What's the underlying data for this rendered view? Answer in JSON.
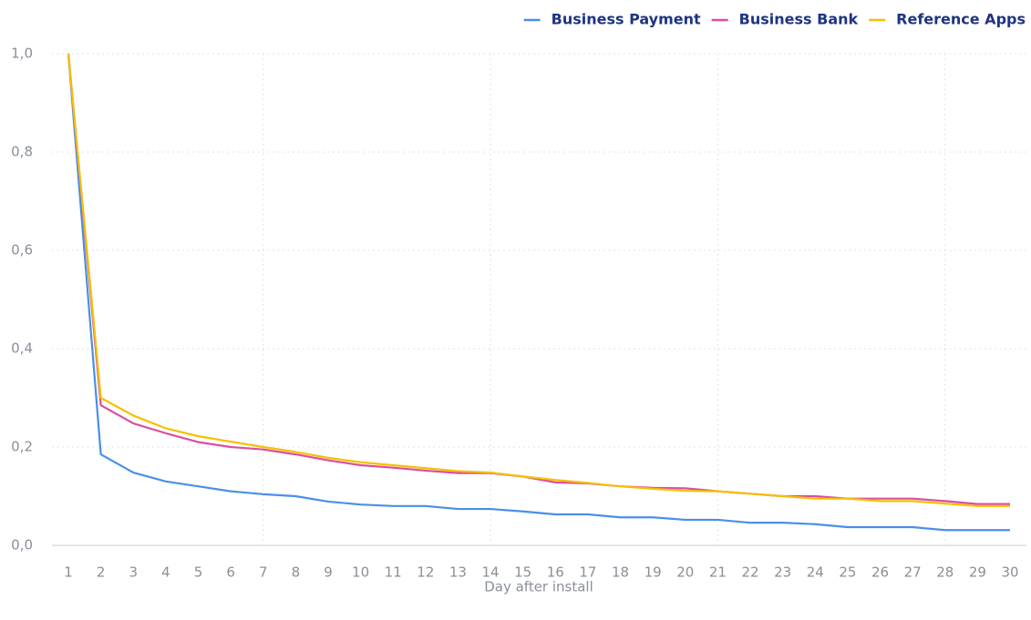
{
  "chart_data": {
    "type": "line",
    "x_label": "Day after install",
    "x": [
      1,
      2,
      3,
      4,
      5,
      6,
      7,
      8,
      9,
      10,
      11,
      12,
      13,
      14,
      15,
      16,
      17,
      18,
      19,
      20,
      21,
      22,
      23,
      24,
      25,
      26,
      27,
      28,
      29,
      30
    ],
    "xlim": [
      0.5,
      30.5
    ],
    "x_grid_lines": [
      7,
      14,
      21,
      28
    ],
    "ylim": [
      0,
      1
    ],
    "yticks": [
      {
        "value": 0,
        "label": "0,0"
      },
      {
        "value": 0.2,
        "label": "0,2"
      },
      {
        "value": 0.4,
        "label": "0,4"
      },
      {
        "value": 0.6,
        "label": "0,6"
      },
      {
        "value": 0.8,
        "label": "0,8"
      },
      {
        "value": 1,
        "label": "1,0"
      }
    ],
    "grid": true,
    "legend": "top-right",
    "series": [
      {
        "name": "Business Payment",
        "color": "#4a8fe7",
        "values": [
          1.0,
          0.185,
          0.148,
          0.13,
          0.12,
          0.11,
          0.104,
          0.1,
          0.089,
          0.083,
          0.08,
          0.08,
          0.074,
          0.074,
          0.069,
          0.063,
          0.063,
          0.057,
          0.057,
          0.052,
          0.052,
          0.046,
          0.046,
          0.043,
          0.037,
          0.037,
          0.037,
          0.031,
          0.031,
          0.031
        ]
      },
      {
        "name": "Business Bank",
        "color": "#d94fa0",
        "values": [
          1.0,
          0.285,
          0.248,
          0.228,
          0.21,
          0.2,
          0.195,
          0.185,
          0.173,
          0.163,
          0.158,
          0.152,
          0.147,
          0.147,
          0.14,
          0.128,
          0.126,
          0.12,
          0.117,
          0.116,
          0.11,
          0.105,
          0.1,
          0.1,
          0.095,
          0.095,
          0.095,
          0.09,
          0.084,
          0.084
        ]
      },
      {
        "name": "Reference Apps",
        "color": "#f5c000",
        "values": [
          1.0,
          0.3,
          0.264,
          0.238,
          0.222,
          0.211,
          0.2,
          0.19,
          0.178,
          0.169,
          0.163,
          0.157,
          0.151,
          0.148,
          0.14,
          0.133,
          0.127,
          0.12,
          0.115,
          0.111,
          0.11,
          0.105,
          0.1,
          0.095,
          0.095,
          0.09,
          0.09,
          0.085,
          0.08,
          0.08
        ]
      }
    ]
  }
}
